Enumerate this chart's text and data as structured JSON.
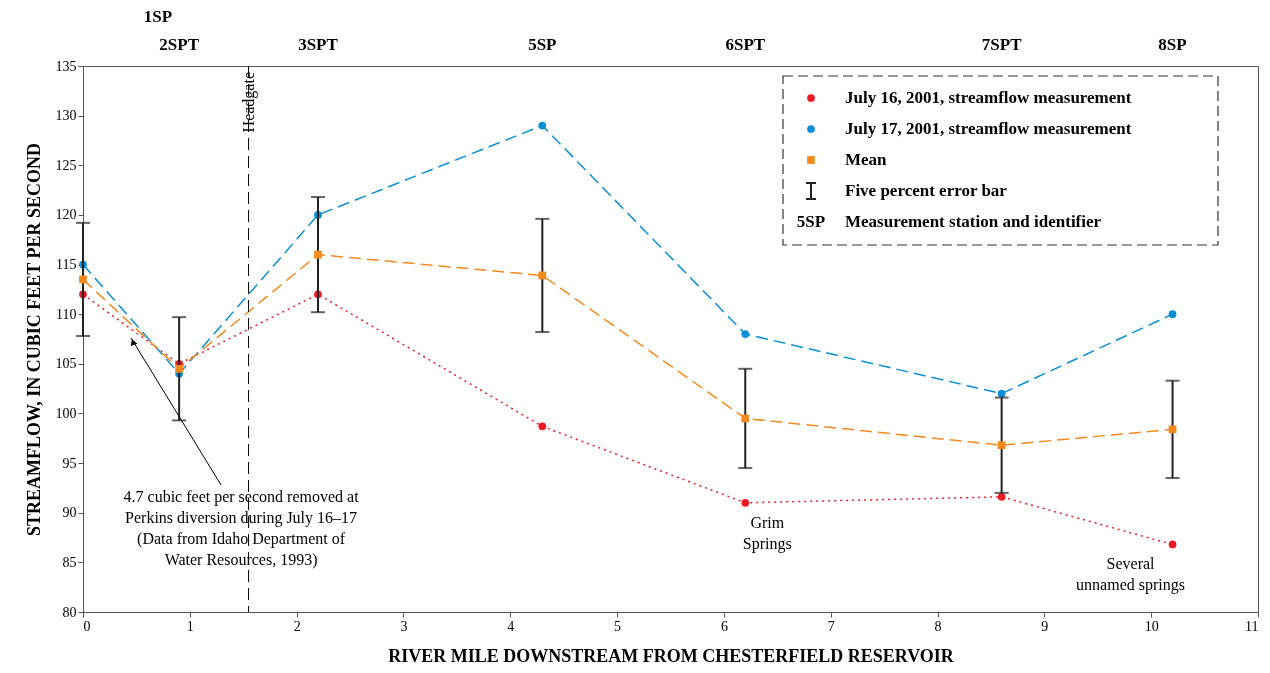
{
  "chart_data": {
    "type": "line",
    "xlabel": "RIVER MILE DOWNSTREAM FROM CHESTERFIELD RESERVOIR",
    "ylabel": "STREAMFLOW, IN CUBIC FEET PER SECOND",
    "x": [
      0,
      0.9,
      2.2,
      4.3,
      6.2,
      8.6,
      10.2
    ],
    "series": [
      {
        "name": "July 16, 2001, streamflow measurement",
        "color": "#ed1c24",
        "marker": "circle",
        "line_style": "dotted",
        "values": [
          112,
          105,
          112,
          98.7,
          91,
          91.6,
          86.8
        ]
      },
      {
        "name": "July 17, 2001, streamflow measurement",
        "color": "#0a8fd4",
        "marker": "circle",
        "line_style": "dashed",
        "values": [
          115,
          104,
          120,
          129,
          108,
          102,
          110
        ]
      },
      {
        "name": "Mean",
        "color": "#f28a1e",
        "marker": "square",
        "line_style": "dashed",
        "values": [
          113.5,
          104.5,
          116,
          113.9,
          99.5,
          96.8,
          98.4
        ],
        "errors": [
          [
            107.8,
            119.2
          ],
          [
            99.3,
            109.7
          ],
          [
            110.2,
            121.8
          ],
          [
            108.2,
            119.6
          ],
          [
            94.5,
            104.5
          ],
          [
            92,
            101.6
          ],
          [
            93.5,
            103.3
          ]
        ]
      }
    ],
    "xlim": [
      0,
      11
    ],
    "xticks": [
      0,
      1,
      2,
      3,
      4,
      5,
      6,
      7,
      8,
      9,
      10,
      11
    ],
    "ylim": [
      80,
      135
    ],
    "yticks": [
      80,
      85,
      90,
      95,
      100,
      105,
      110,
      115,
      120,
      125,
      130,
      135
    ],
    "grid": false,
    "legend": "top right",
    "ref_lines": [
      {
        "axis": "x",
        "value": 1.55,
        "label": "Headgate",
        "line_style": "dashed",
        "color": "#000000"
      }
    ],
    "annotations": [
      "1SP",
      "2SPT",
      "3SPT",
      "5SP",
      "6SPT",
      "7SPT",
      "8SP",
      {
        "text": "4.7 cubic feet per second removed at\nPerkins diversion during July 16–17\n(Data from Idaho Department of\nWater Resources, 1993)",
        "x": 0.45,
        "y": 108
      },
      {
        "text": "Grim\nSprings",
        "x": 6.2,
        "y": 91
      },
      {
        "text": "Several\nunnamed springs",
        "x": 10.2,
        "y": 86.8
      },
      "Five percent error bar",
      "5SP Measurement station and identifier"
    ]
  }
}
